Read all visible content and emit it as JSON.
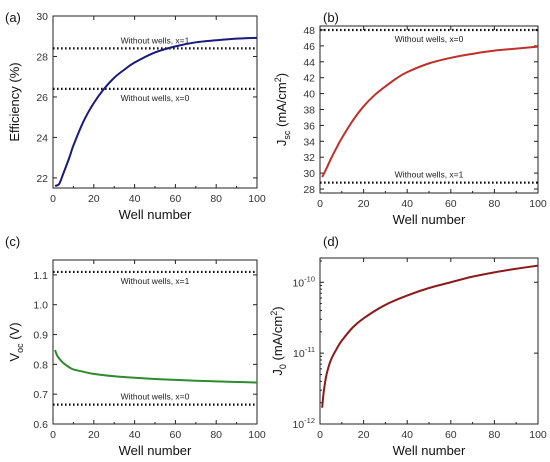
{
  "chart_data": [
    {
      "panel": "(a)",
      "type": "line",
      "xlabel": "Well number",
      "ylabel": "Efficiency (%)",
      "xlim": [
        0,
        100
      ],
      "ylim": [
        21.5,
        30
      ],
      "xticks": [
        0,
        20,
        40,
        60,
        80,
        100
      ],
      "yticks": [
        22,
        24,
        26,
        28,
        30
      ],
      "ytick_labels": [
        "22",
        "24",
        "26",
        "28",
        "30"
      ],
      "x_tick_labels": [
        "0",
        "20",
        "40",
        "60",
        "80",
        "100"
      ],
      "series": [
        {
          "color": "#1a1a7a",
          "x": [
            1,
            3,
            5,
            8,
            10,
            15,
            20,
            25,
            30,
            35,
            40,
            50,
            60,
            70,
            80,
            90,
            100
          ],
          "y": [
            21.6,
            21.7,
            22.2,
            23.0,
            23.6,
            24.8,
            25.7,
            26.4,
            26.95,
            27.35,
            27.7,
            28.2,
            28.5,
            28.7,
            28.8,
            28.88,
            28.92
          ]
        }
      ],
      "hlines": [
        {
          "y": 28.4,
          "label": "Without wells, x=1",
          "label_pos": "above"
        },
        {
          "y": 26.4,
          "label": "Without wells, x=0",
          "label_pos": "below"
        }
      ]
    },
    {
      "panel": "(b)",
      "type": "line",
      "xlabel": "Well number",
      "ylabel_main": "J",
      "ylabel_sub": "sc",
      "ylabel_unit": " (mA/cm",
      "ylabel_sup": "2",
      "ylabel_end": ")",
      "xlim": [
        0,
        100
      ],
      "ylim": [
        27.5,
        48.5
      ],
      "xticks": [
        0,
        20,
        40,
        60,
        80,
        100
      ],
      "yticks": [
        28,
        30,
        32,
        34,
        36,
        38,
        40,
        42,
        44,
        46,
        48
      ],
      "ytick_labels": [
        "28",
        "30",
        "32",
        "34",
        "36",
        "38",
        "40",
        "42",
        "44",
        "46",
        "48"
      ],
      "x_tick_labels": [
        "0",
        "20",
        "40",
        "60",
        "80",
        "100"
      ],
      "series": [
        {
          "color": "#c0302a",
          "x": [
            1,
            3,
            5,
            8,
            10,
            15,
            20,
            25,
            30,
            35,
            40,
            50,
            60,
            70,
            80,
            90,
            100
          ],
          "y": [
            29.5,
            30.6,
            31.8,
            33.4,
            34.4,
            36.6,
            38.4,
            39.8,
            40.9,
            41.9,
            42.7,
            43.8,
            44.5,
            45.0,
            45.4,
            45.65,
            45.9
          ]
        }
      ],
      "hlines": [
        {
          "y": 48.0,
          "label": "Without wells, x=0",
          "label_pos": "below"
        },
        {
          "y": 28.8,
          "label": "Without wells, x=1",
          "label_pos": "above"
        }
      ]
    },
    {
      "panel": "(c)",
      "type": "line",
      "xlabel": "Well number",
      "ylabel_main": "V",
      "ylabel_sub": "oc",
      "ylabel_unit": " (V)",
      "xlim": [
        0,
        100
      ],
      "ylim": [
        0.6,
        1.15
      ],
      "xticks": [
        0,
        20,
        40,
        60,
        80,
        100
      ],
      "yticks": [
        0.6,
        0.7,
        0.8,
        0.9,
        1.0,
        1.1
      ],
      "ytick_labels": [
        "0.6",
        "0.7",
        "0.8",
        "0.9",
        "1.0",
        "1.1"
      ],
      "x_tick_labels": [
        "0",
        "20",
        "40",
        "60",
        "80",
        "100"
      ],
      "series": [
        {
          "color": "#2e8b2e",
          "x": [
            1,
            2,
            3,
            5,
            8,
            10,
            15,
            20,
            30,
            40,
            50,
            60,
            70,
            80,
            90,
            100
          ],
          "y": [
            0.848,
            0.83,
            0.82,
            0.805,
            0.79,
            0.783,
            0.775,
            0.768,
            0.76,
            0.755,
            0.751,
            0.748,
            0.745,
            0.743,
            0.741,
            0.739
          ]
        }
      ],
      "hlines": [
        {
          "y": 1.11,
          "label": "Without wells, x=1",
          "label_pos": "below"
        },
        {
          "y": 0.665,
          "label": "Without wells, x=0",
          "label_pos": "above"
        }
      ]
    },
    {
      "panel": "(d)",
      "type": "line",
      "scale_y": "log",
      "xlabel": "Well number",
      "ylabel_main": "J",
      "ylabel_sub": "0",
      "ylabel_unit": " (mA/cm",
      "ylabel_sup": "2",
      "ylabel_end": ")",
      "xlim": [
        0,
        100
      ],
      "ylim": [
        1e-12,
        2.2e-10
      ],
      "xticks": [
        0,
        20,
        40,
        60,
        80,
        100
      ],
      "yticks": [
        1e-12,
        1e-11,
        1e-10
      ],
      "ytick_base": [
        "10",
        "10",
        "10"
      ],
      "ytick_exp": [
        "-12",
        "-11",
        "-10"
      ],
      "x_tick_labels": [
        "0",
        "20",
        "40",
        "60",
        "80",
        "100"
      ],
      "series": [
        {
          "color": "#8b1a1a",
          "x": [
            1,
            1.5,
            2,
            3,
            5,
            8,
            10,
            15,
            20,
            30,
            40,
            50,
            60,
            70,
            80,
            90,
            100
          ],
          "y": [
            1.7e-12,
            2.5e-12,
            3.3e-12,
            5e-12,
            8e-12,
            1.2e-11,
            1.5e-11,
            2.3e-11,
            3.1e-11,
            4.8e-11,
            6.5e-11,
            8.3e-11,
            1e-10,
            1.2e-10,
            1.38e-10,
            1.55e-10,
            1.72e-10
          ]
        }
      ]
    }
  ]
}
